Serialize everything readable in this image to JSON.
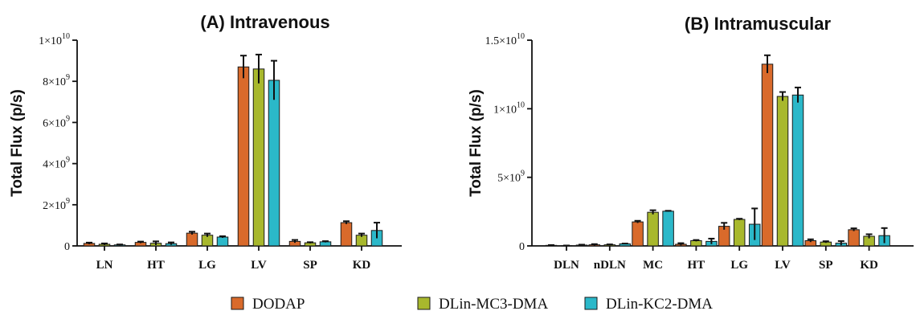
{
  "colors": {
    "DODAP": "#d96a2b",
    "DLin-MC3-DMA": "#a8b82d",
    "DLin-KC2-DMA": "#2bb8c9"
  },
  "legend": [
    "DODAP",
    "DLin-MC3-DMA",
    "DLin-KC2-DMA"
  ],
  "chart_data": [
    {
      "type": "bar",
      "title": "(A) Intravenous",
      "ylabel": "Total Flux (p/s)",
      "xlabel": "",
      "ylim": [
        0,
        10000000000
      ],
      "yticks": [
        {
          "value": 0,
          "label": "0"
        },
        {
          "value": 2000000000,
          "label": "2×10",
          "exp": "9"
        },
        {
          "value": 4000000000,
          "label": "4×10",
          "exp": "9"
        },
        {
          "value": 6000000000,
          "label": "6×10",
          "exp": "9"
        },
        {
          "value": 8000000000,
          "label": "8×10",
          "exp": "9"
        },
        {
          "value": 10000000000,
          "label": "1×10",
          "exp": "10"
        }
      ],
      "categories": [
        "LN",
        "HT",
        "LG",
        "LV",
        "SP",
        "KD"
      ],
      "series": [
        {
          "name": "DODAP",
          "values": [
            120000000,
            170000000,
            620000000,
            8700000000,
            220000000,
            1130000000
          ],
          "errors": [
            40000000,
            40000000,
            70000000,
            550000000,
            70000000,
            70000000
          ]
        },
        {
          "name": "DLin-MC3-DMA",
          "values": [
            80000000,
            130000000,
            520000000,
            8600000000,
            150000000,
            520000000
          ],
          "errors": [
            40000000,
            90000000,
            80000000,
            700000000,
            30000000,
            80000000
          ]
        },
        {
          "name": "DLin-KC2-DMA",
          "values": [
            50000000,
            110000000,
            430000000,
            8050000000,
            200000000,
            750000000
          ],
          "errors": [
            20000000,
            60000000,
            40000000,
            950000000,
            30000000,
            380000000
          ]
        }
      ]
    },
    {
      "type": "bar",
      "title": "(B) Intramuscular",
      "ylabel": "Total Flux (p/s)",
      "xlabel": "",
      "ylim": [
        0,
        15000000000
      ],
      "yticks": [
        {
          "value": 0,
          "label": "0"
        },
        {
          "value": 5000000000,
          "label": "5×10",
          "exp": "9"
        },
        {
          "value": 10000000000,
          "label": "1×10",
          "exp": "10"
        },
        {
          "value": 15000000000,
          "label": "1.5×10",
          "exp": "10"
        }
      ],
      "categories": [
        "DLN",
        "nDLN",
        "MC",
        "HT",
        "LG",
        "LV",
        "SP",
        "KD"
      ],
      "series": [
        {
          "name": "DODAP",
          "values": [
            40000000,
            80000000,
            1750000000,
            120000000,
            1430000000,
            13250000000,
            380000000,
            1180000000
          ],
          "errors": [
            20000000,
            50000000,
            80000000,
            80000000,
            250000000,
            650000000,
            100000000,
            100000000
          ]
        },
        {
          "name": "DLin-MC3-DMA",
          "values": [
            20000000,
            80000000,
            2450000000,
            380000000,
            1930000000,
            10900000000,
            280000000,
            700000000
          ],
          "errors": [
            10000000,
            30000000,
            150000000,
            50000000,
            50000000,
            320000000,
            60000000,
            150000000
          ]
        },
        {
          "name": "DLin-KC2-DMA",
          "values": [
            60000000,
            150000000,
            2530000000,
            330000000,
            1580000000,
            11000000000,
            200000000,
            750000000
          ],
          "errors": [
            30000000,
            20000000,
            30000000,
            200000000,
            1150000000,
            550000000,
            150000000,
            550000000
          ]
        }
      ]
    }
  ]
}
